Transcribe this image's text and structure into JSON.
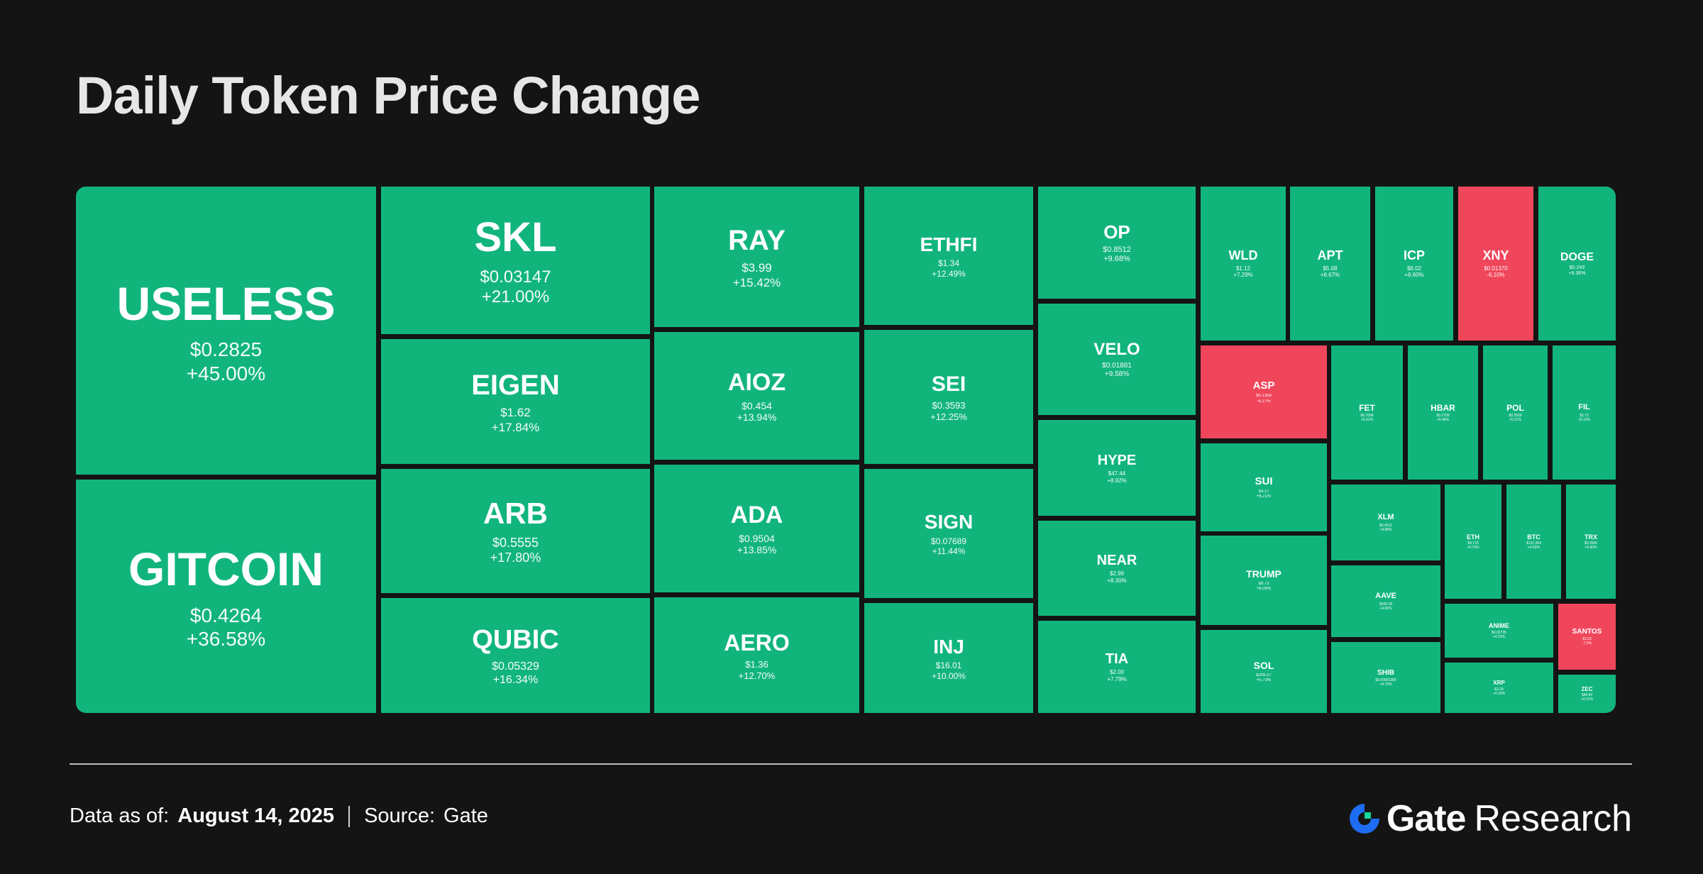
{
  "title": "Daily Token Price Change",
  "footer": {
    "date_label": "Data as of:",
    "date_value": "August 14, 2025",
    "source_label": "Source:",
    "source_value": "Gate"
  },
  "logo": {
    "brand": "Gate",
    "suffix": "Research",
    "icon": "gate-logo-icon",
    "icon_color": "#1e6cf2"
  },
  "colors": {
    "up": "#11b57c",
    "down": "#f0465b",
    "background": "#141414"
  },
  "chart_data": {
    "type": "heatmap",
    "title": "Daily Token Price Change",
    "tiles": [
      {
        "symbol": "USELESS",
        "price": "$0.2825",
        "change": "+45.00%",
        "direction": "up"
      },
      {
        "symbol": "GITCOIN",
        "price": "$0.4264",
        "change": "+36.58%",
        "direction": "up"
      },
      {
        "symbol": "SKL",
        "price": "$0.03147",
        "change": "+21.00%",
        "direction": "up"
      },
      {
        "symbol": "EIGEN",
        "price": "$1.62",
        "change": "+17.84%",
        "direction": "up"
      },
      {
        "symbol": "ARB",
        "price": "$0.5555",
        "change": "+17.80%",
        "direction": "up"
      },
      {
        "symbol": "QUBIC",
        "price": "$0.05329",
        "change": "+16.34%",
        "direction": "up"
      },
      {
        "symbol": "RAY",
        "price": "$3.99",
        "change": "+15.42%",
        "direction": "up"
      },
      {
        "symbol": "AIOZ",
        "price": "$0.454",
        "change": "+13.94%",
        "direction": "up"
      },
      {
        "symbol": "ADA",
        "price": "$0.9504",
        "change": "+13.85%",
        "direction": "up"
      },
      {
        "symbol": "AERO",
        "price": "$1.36",
        "change": "+12.70%",
        "direction": "up"
      },
      {
        "symbol": "ETHFI",
        "price": "$1.34",
        "change": "+12.49%",
        "direction": "up"
      },
      {
        "symbol": "SEI",
        "price": "$0.3593",
        "change": "+12.25%",
        "direction": "up"
      },
      {
        "symbol": "SIGN",
        "price": "$0.07689",
        "change": "+11.44%",
        "direction": "up"
      },
      {
        "symbol": "INJ",
        "price": "$16.01",
        "change": "+10.00%",
        "direction": "up"
      },
      {
        "symbol": "OP",
        "price": "$0.8512",
        "change": "+9.68%",
        "direction": "up"
      },
      {
        "symbol": "VELO",
        "price": "$0.01881",
        "change": "+9.58%",
        "direction": "up"
      },
      {
        "symbol": "HYPE",
        "price": "$47.44",
        "change": "+8.92%",
        "direction": "up"
      },
      {
        "symbol": "NEAR",
        "price": "$2.99",
        "change": "+8.30%",
        "direction": "up"
      },
      {
        "symbol": "TIA",
        "price": "$2.00",
        "change": "+7.79%",
        "direction": "up"
      },
      {
        "symbol": "WLD",
        "price": "$1.12",
        "change": "+7.29%",
        "direction": "up"
      },
      {
        "symbol": "APT",
        "price": "$5.68",
        "change": "+6.67%",
        "direction": "up"
      },
      {
        "symbol": "ICP",
        "price": "$6.02",
        "change": "+6.60%",
        "direction": "up"
      },
      {
        "symbol": "XNY",
        "price": "$0.01370",
        "change": "-6.10%",
        "direction": "down"
      },
      {
        "symbol": "DOGE",
        "price": "$0.243",
        "change": "+6.36%",
        "direction": "up"
      },
      {
        "symbol": "ASP",
        "price": "$0.1358",
        "change": "-6.27%",
        "direction": "down"
      },
      {
        "symbol": "SUI",
        "price": "$4.17",
        "change": "+6.21%",
        "direction": "up"
      },
      {
        "symbol": "TRUMP",
        "price": "$9.73",
        "change": "+6.06%",
        "direction": "up"
      },
      {
        "symbol": "SOL",
        "price": "$208.37",
        "change": "+5.73%",
        "direction": "up"
      },
      {
        "symbol": "FET",
        "price": "$0.7098",
        "change": "+5.91%",
        "direction": "up"
      },
      {
        "symbol": "HBAR",
        "price": "$0.2709",
        "change": "+5.48%",
        "direction": "up"
      },
      {
        "symbol": "POL",
        "price": "$0.2609",
        "change": "+5.21%",
        "direction": "up"
      },
      {
        "symbol": "FIL",
        "price": "$2.73",
        "change": "+5.10%",
        "direction": "up"
      },
      {
        "symbol": "XLM",
        "price": "$0.4511",
        "change": "+4.88%",
        "direction": "up"
      },
      {
        "symbol": "AAVE",
        "price": "$349.28",
        "change": "+4.90%",
        "direction": "up"
      },
      {
        "symbol": "SHIB",
        "price": "$0.00001389",
        "change": "+4.70%",
        "direction": "up"
      },
      {
        "symbol": "ETH",
        "price": "$4,715",
        "change": "+4.70%",
        "direction": "up"
      },
      {
        "symbol": "BTC",
        "price": "$121,954",
        "change": "+4.50%",
        "direction": "up"
      },
      {
        "symbol": "TRX",
        "price": "$0.3565",
        "change": "+4.30%",
        "direction": "up"
      },
      {
        "symbol": "ANIME",
        "price": "$0.02735",
        "change": "+4.23%",
        "direction": "up"
      },
      {
        "symbol": "SANTOS",
        "price": "$3.33",
        "change": "-7.0%",
        "direction": "down"
      },
      {
        "symbol": "XRP",
        "price": "$3.29",
        "change": "+4.10%",
        "direction": "up"
      },
      {
        "symbol": "ZEC",
        "price": "$46.64",
        "change": "+4.01%",
        "direction": "up"
      }
    ]
  }
}
